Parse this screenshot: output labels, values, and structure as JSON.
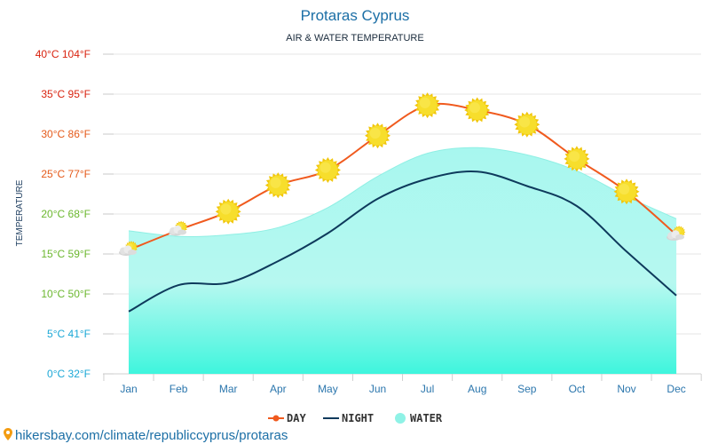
{
  "chart_data": {
    "type": "line",
    "title": "Protaras Cyprus",
    "subtitle": "AIR & WATER TEMPERATURE",
    "ylabel": "TEMPERATURE",
    "categories": [
      "Jan",
      "Feb",
      "Mar",
      "Apr",
      "May",
      "Jun",
      "Jul",
      "Aug",
      "Sep",
      "Oct",
      "Nov",
      "Dec"
    ],
    "ylim": [
      0,
      40
    ],
    "yticks": [
      {
        "value": 0,
        "label": "0°C 32°F",
        "color": "#1aa7d6"
      },
      {
        "value": 5,
        "label": "5°C 41°F",
        "color": "#1aa7d6"
      },
      {
        "value": 10,
        "label": "10°C 50°F",
        "color": "#6bb72e"
      },
      {
        "value": 15,
        "label": "15°C 59°F",
        "color": "#6bb72e"
      },
      {
        "value": 20,
        "label": "20°C 68°F",
        "color": "#6bb72e"
      },
      {
        "value": 25,
        "label": "25°C 77°F",
        "color": "#e55a1a"
      },
      {
        "value": 30,
        "label": "30°C 86°F",
        "color": "#e55a1a"
      },
      {
        "value": 35,
        "label": "35°C 95°F",
        "color": "#d9230f"
      },
      {
        "value": 40,
        "label": "40°C 104°F",
        "color": "#d9230f"
      }
    ],
    "series": [
      {
        "name": "DAY",
        "color": "#f05a1e",
        "values": [
          15.5,
          18.0,
          20.3,
          23.6,
          25.5,
          29.8,
          33.6,
          33.0,
          31.2,
          26.9,
          22.8,
          17.4
        ]
      },
      {
        "name": "NIGHT",
        "color": "#0e3a5c",
        "values": [
          7.8,
          11.1,
          11.4,
          14.1,
          17.6,
          21.9,
          24.4,
          25.3,
          23.5,
          21.0,
          15.3,
          9.8
        ]
      },
      {
        "name": "WATER",
        "color": "#8ff2e6",
        "values": [
          17.9,
          17.2,
          17.4,
          18.3,
          20.8,
          24.7,
          27.6,
          28.3,
          27.4,
          25.4,
          22.2,
          19.4
        ]
      }
    ],
    "day_icons": [
      "partly-cloudy",
      "partly-cloudy",
      "sun",
      "sun",
      "sun",
      "sun",
      "sun",
      "sun",
      "sun",
      "sun",
      "sun",
      "partly-cloudy"
    ],
    "grid": true,
    "legend_position": "bottom"
  },
  "source_link": "hikersbay.com/climate/republiccyprus/protaras",
  "colors": {
    "water_top": "#a8f7ef",
    "water_bottom": "#3ff5dd",
    "grid": "#e6e6e6",
    "sun": "#f5d612"
  }
}
